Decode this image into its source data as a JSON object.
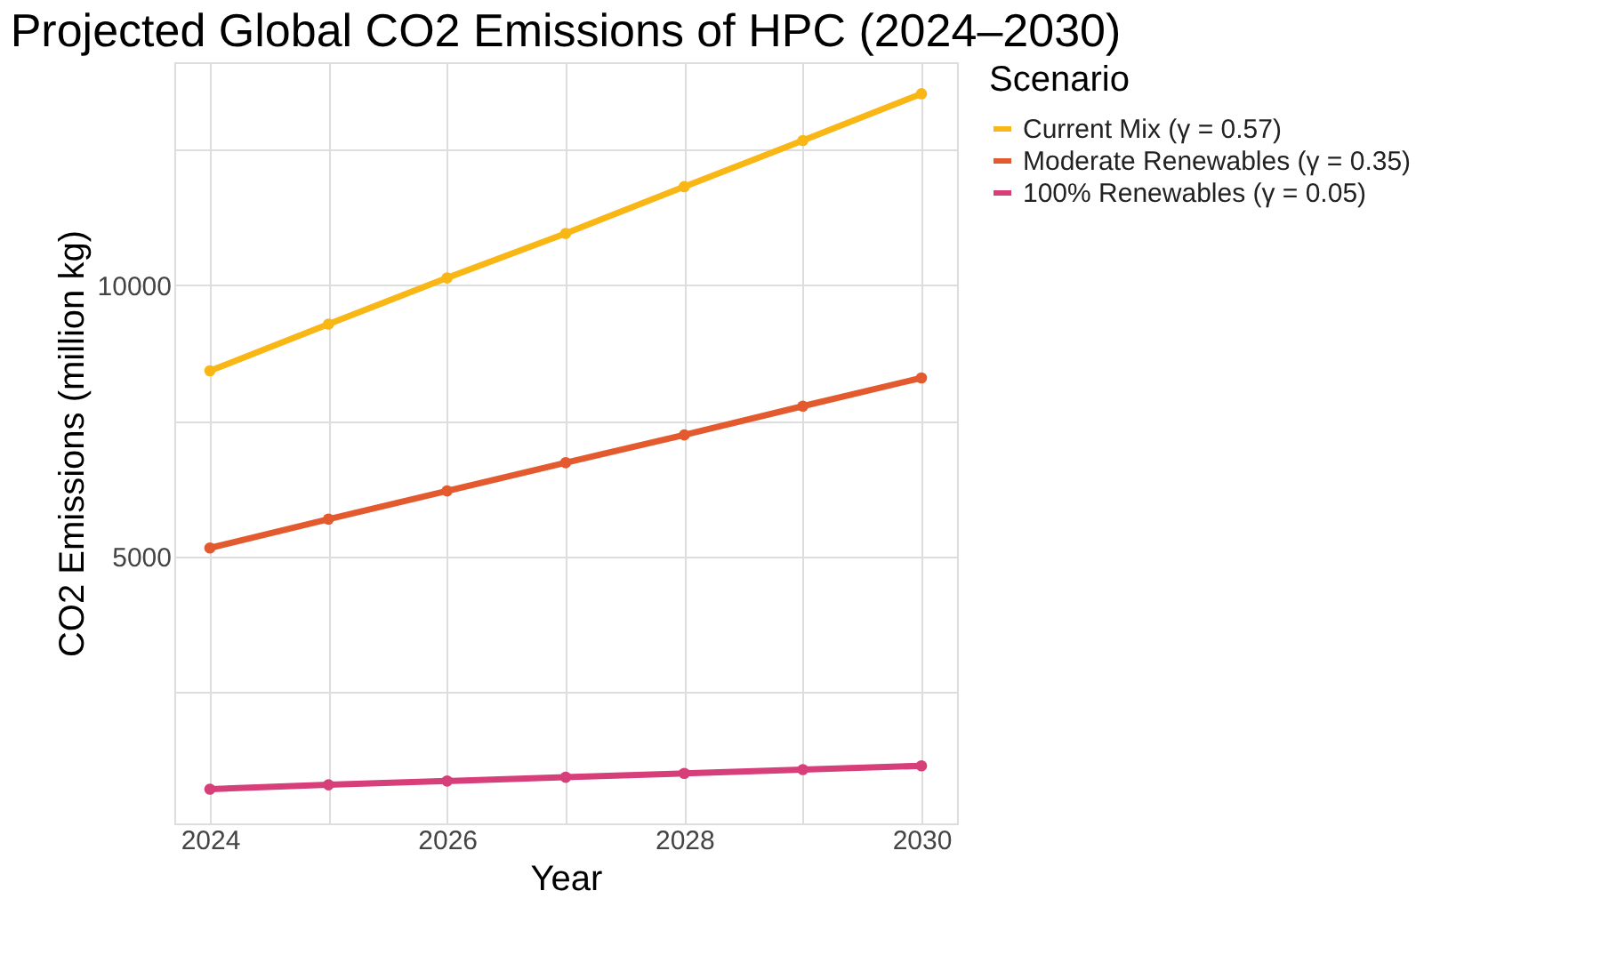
{
  "chart_data": {
    "type": "line",
    "title": "Projected Global CO2 Emissions of HPC (2024–2030)",
    "xlabel": "Year",
    "ylabel": "CO2 Emissions (million kg)",
    "legend_title": "Scenario",
    "x": [
      2024,
      2025,
      2026,
      2027,
      2028,
      2029,
      2030
    ],
    "series": [
      {
        "name": "Current Mix (γ = 0.57)",
        "color": "#f9b715",
        "values": [
          8420,
          9280,
          10130,
          10950,
          11810,
          12660,
          13520
        ]
      },
      {
        "name": "Moderate Renewables (γ = 0.35)",
        "color": "#e45a2f",
        "values": [
          5160,
          5690,
          6210,
          6730,
          7240,
          7770,
          8290
        ]
      },
      {
        "name": "100% Renewables (γ = 0.05)",
        "color": "#d63f7a",
        "values": [
          720,
          800,
          870,
          940,
          1010,
          1080,
          1150
        ]
      }
    ],
    "xlim": [
      2023.7,
      2030.3
    ],
    "ylim": [
      90,
      14100
    ],
    "xticks": [
      2024,
      {
        "value": 2025,
        "label": null
      },
      2026,
      {
        "value": 2027,
        "label": null
      },
      2028,
      {
        "value": 2029,
        "label": null
      },
      2030
    ],
    "yticks": [
      {
        "value": 2500,
        "label": null
      },
      5000,
      {
        "value": 7500,
        "label": null
      },
      10000,
      {
        "value": 12500,
        "label": null
      }
    ],
    "grid": true,
    "legend": "right",
    "marker": "circle",
    "line_style": "solid"
  }
}
